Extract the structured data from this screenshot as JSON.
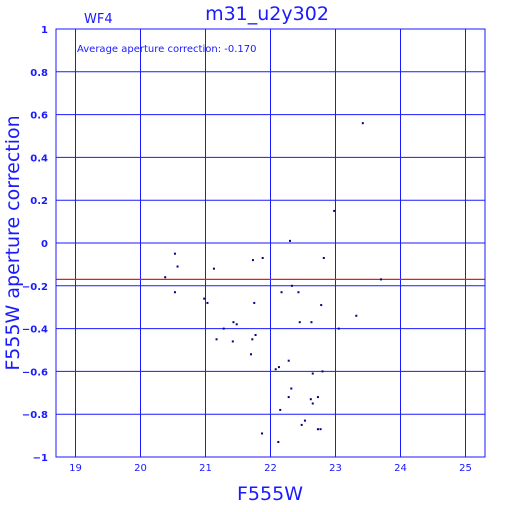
{
  "chart_data": {
    "type": "scatter",
    "title": "m31_u2y302",
    "chip_label": "WF4",
    "annotation": "Average aperture correction: -0.170",
    "xlabel": "F555W",
    "ylabel": "F555W aperture correction",
    "xlim": [
      18.7,
      25.3
    ],
    "ylim": [
      -1,
      1
    ],
    "x_ticks": [
      19,
      20,
      21,
      22,
      23,
      24,
      25
    ],
    "y_ticks": [
      -1,
      -0.8,
      -0.6,
      -0.4,
      -0.2,
      0,
      0.2,
      0.4,
      0.6,
      0.8,
      1
    ],
    "x_tick_labels": [
      "19",
      "20",
      "21",
      "22",
      "23",
      "24",
      "25"
    ],
    "y_tick_labels": [
      "−1",
      "−0.8",
      "−0.6",
      "−0.4",
      "−0.2",
      "0",
      "0.2",
      "0.4",
      "0.6",
      "0.8",
      "1"
    ],
    "grid": true,
    "reference_line": {
      "y": -0.17,
      "color": "#e02020"
    },
    "colors": {
      "axes": "#1a1aff",
      "points": "#000080"
    },
    "points": [
      {
        "x": 20.38,
        "y": -0.16
      },
      {
        "x": 20.53,
        "y": -0.05
      },
      {
        "x": 20.57,
        "y": -0.11
      },
      {
        "x": 20.53,
        "y": -0.23
      },
      {
        "x": 20.98,
        "y": -0.26
      },
      {
        "x": 21.03,
        "y": -0.28
      },
      {
        "x": 21.13,
        "y": -0.12
      },
      {
        "x": 21.17,
        "y": -0.45
      },
      {
        "x": 21.28,
        "y": -0.4
      },
      {
        "x": 21.42,
        "y": -0.46
      },
      {
        "x": 21.43,
        "y": -0.37
      },
      {
        "x": 21.48,
        "y": -0.38
      },
      {
        "x": 21.73,
        "y": -0.08
      },
      {
        "x": 21.75,
        "y": -0.28
      },
      {
        "x": 21.72,
        "y": -0.45
      },
      {
        "x": 21.77,
        "y": -0.43
      },
      {
        "x": 21.7,
        "y": -0.52
      },
      {
        "x": 21.88,
        "y": -0.07
      },
      {
        "x": 21.87,
        "y": -0.89
      },
      {
        "x": 22.08,
        "y": -0.59
      },
      {
        "x": 22.13,
        "y": -0.58
      },
      {
        "x": 22.17,
        "y": -0.23
      },
      {
        "x": 22.15,
        "y": -0.78
      },
      {
        "x": 22.12,
        "y": -0.93
      },
      {
        "x": 22.28,
        "y": -0.55
      },
      {
        "x": 22.28,
        "y": -0.72
      },
      {
        "x": 22.3,
        "y": 0.01
      },
      {
        "x": 22.33,
        "y": -0.2
      },
      {
        "x": 22.32,
        "y": -0.68
      },
      {
        "x": 22.43,
        "y": -0.23
      },
      {
        "x": 22.45,
        "y": -0.37
      },
      {
        "x": 22.48,
        "y": -0.85
      },
      {
        "x": 22.53,
        "y": -0.83
      },
      {
        "x": 22.63,
        "y": -0.37
      },
      {
        "x": 22.65,
        "y": -0.61
      },
      {
        "x": 22.62,
        "y": -0.73
      },
      {
        "x": 22.65,
        "y": -0.75
      },
      {
        "x": 22.73,
        "y": -0.72
      },
      {
        "x": 22.73,
        "y": -0.87
      },
      {
        "x": 22.77,
        "y": -0.87
      },
      {
        "x": 22.78,
        "y": -0.29
      },
      {
        "x": 22.8,
        "y": -0.6
      },
      {
        "x": 22.82,
        "y": -0.07
      },
      {
        "x": 22.98,
        "y": 0.15
      },
      {
        "x": 23.05,
        "y": -0.4
      },
      {
        "x": 23.32,
        "y": -0.34
      },
      {
        "x": 23.42,
        "y": 0.56
      },
      {
        "x": 23.7,
        "y": -0.17
      }
    ]
  }
}
